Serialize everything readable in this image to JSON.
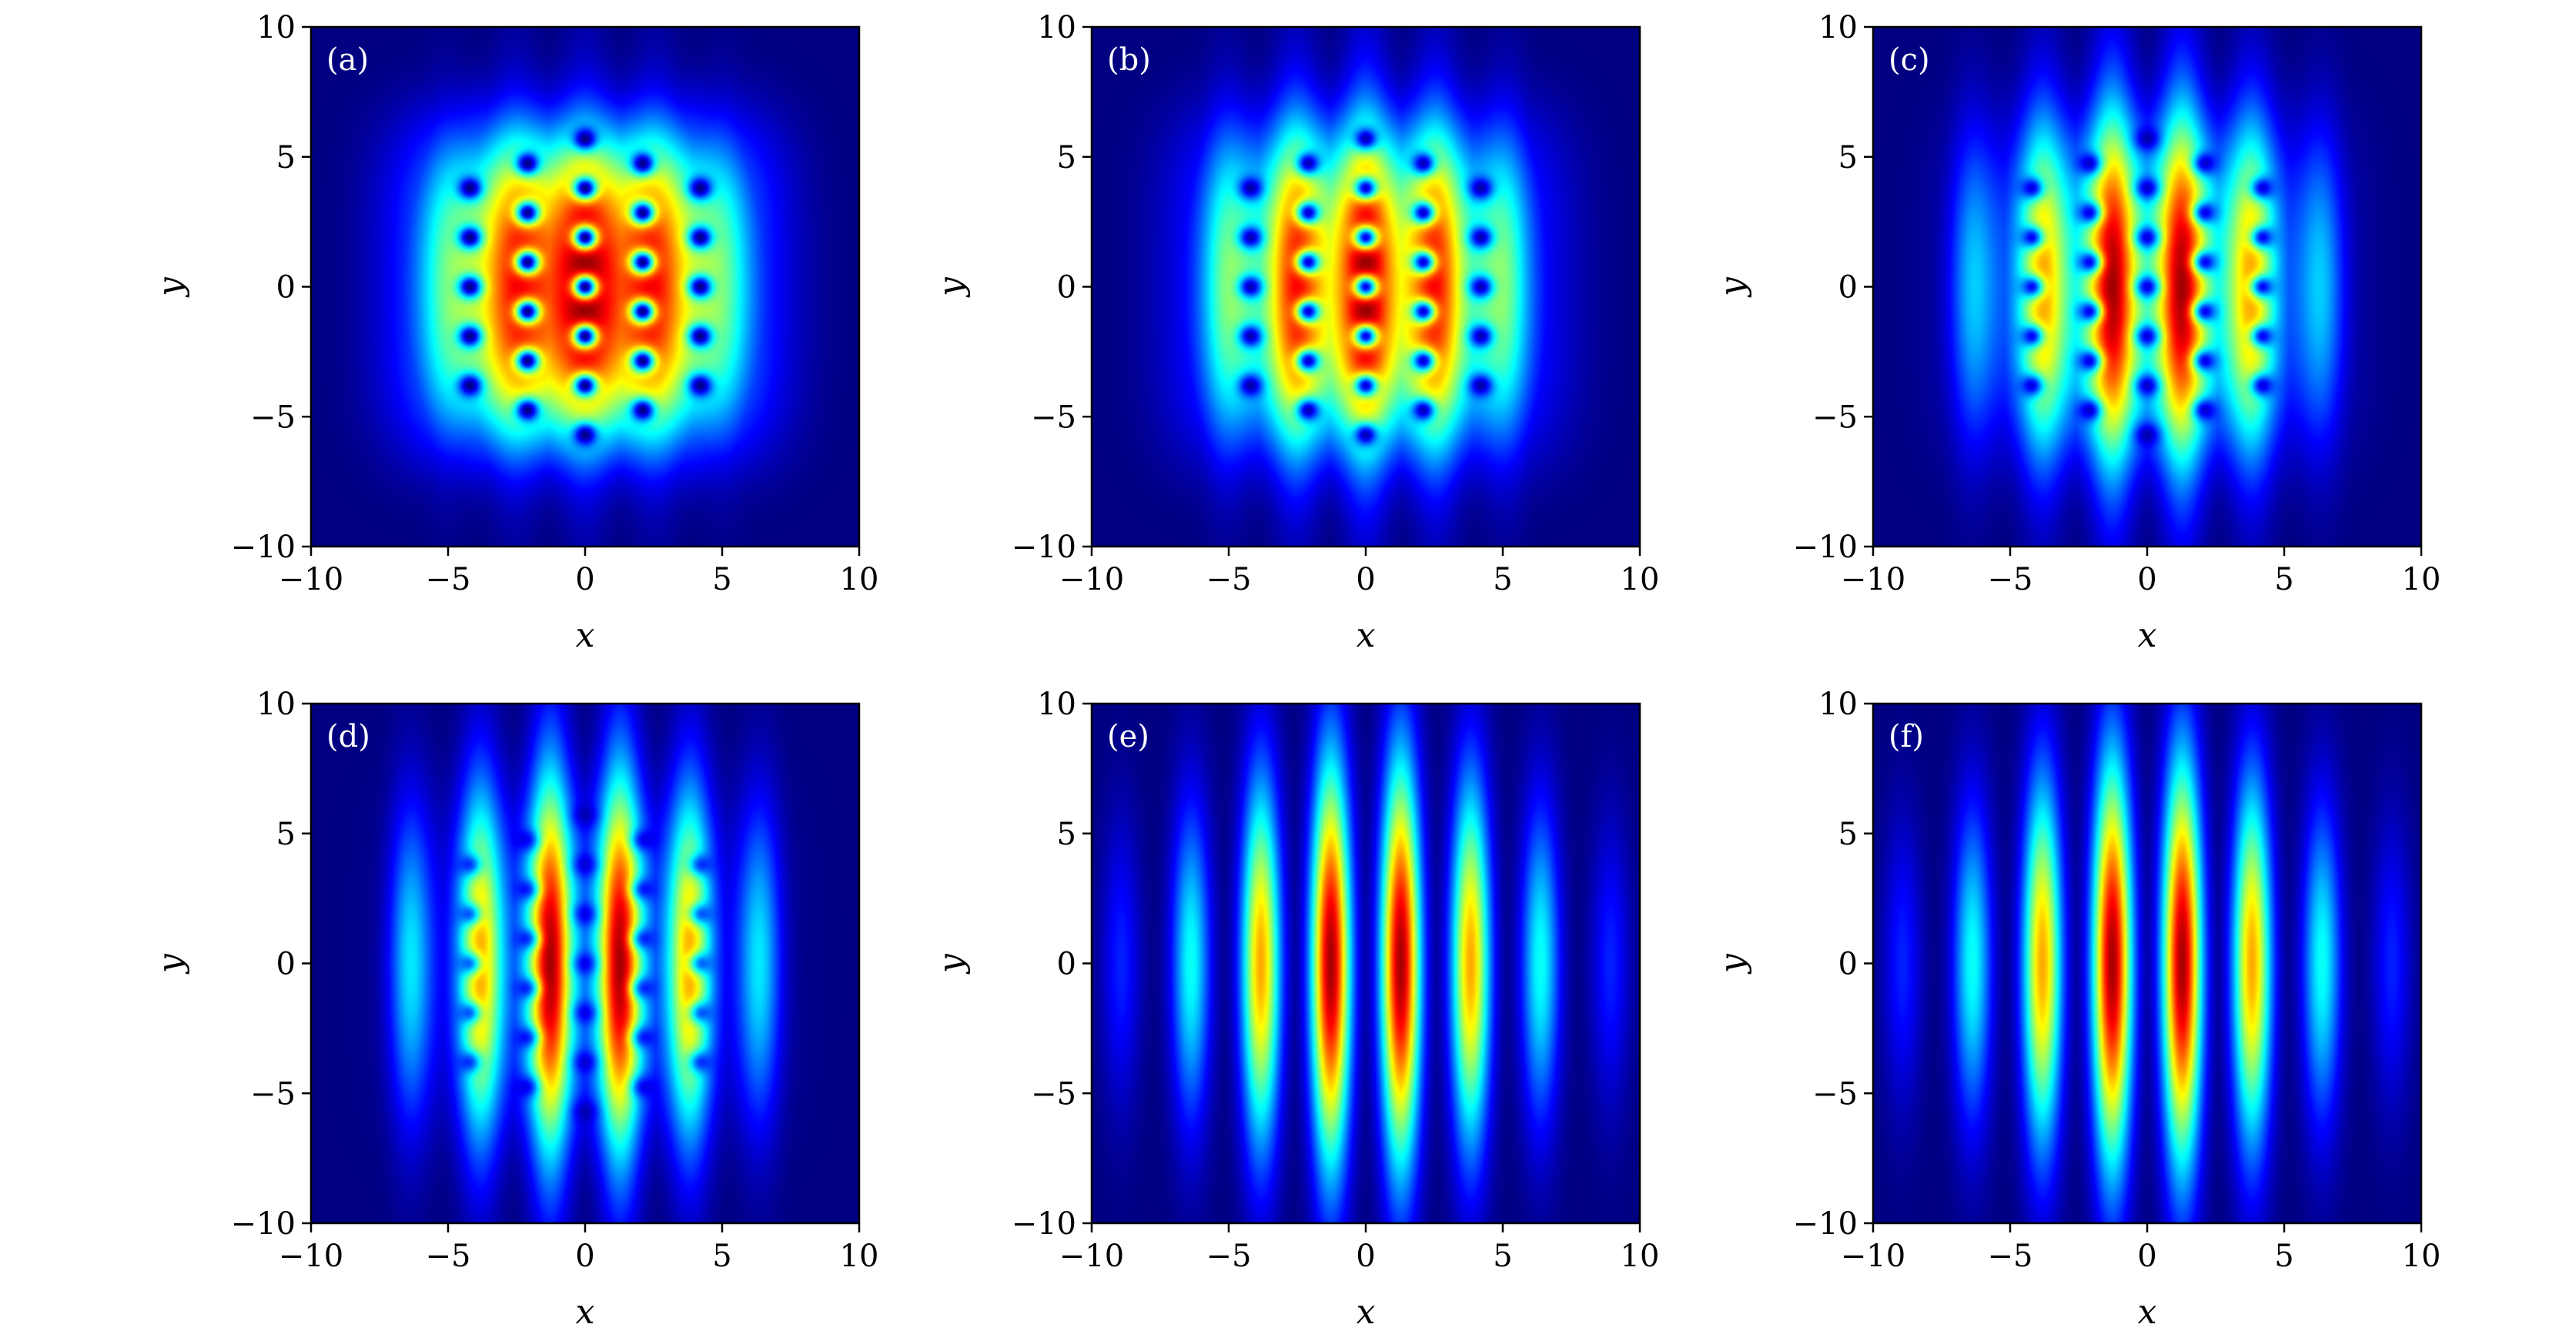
{
  "chart_data": [
    {
      "type": "heatmap",
      "panel_label": "(a)",
      "xlabel": "x",
      "ylabel": "y",
      "xlim": [
        -10,
        10
      ],
      "ylim": [
        -10,
        10
      ],
      "xticks": [
        -10,
        -5,
        0,
        5,
        10
      ],
      "yticks": [
        -10,
        -5,
        0,
        5,
        10
      ],
      "lobe_count": 5,
      "vortex_strength": 1.0,
      "lobe_contrast": 0.2
    },
    {
      "type": "heatmap",
      "panel_label": "(b)",
      "xlabel": "x",
      "ylabel": "y",
      "xlim": [
        -10,
        10
      ],
      "ylim": [
        -10,
        10
      ],
      "xticks": [
        -10,
        -5,
        0,
        5,
        10
      ],
      "yticks": [
        -10,
        -5,
        0,
        5,
        10
      ],
      "lobe_count": 5,
      "vortex_strength": 0.9,
      "lobe_contrast": 0.4
    },
    {
      "type": "heatmap",
      "panel_label": "(c)",
      "xlabel": "x",
      "ylabel": "y",
      "xlim": [
        -10,
        10
      ],
      "ylim": [
        -10,
        10
      ],
      "xticks": [
        -10,
        -5,
        0,
        5,
        10
      ],
      "yticks": [
        -10,
        -5,
        0,
        5,
        10
      ],
      "lobe_count": 6,
      "vortex_strength": 0.8,
      "lobe_contrast": 0.6
    },
    {
      "type": "heatmap",
      "panel_label": "(d)",
      "xlabel": "x",
      "ylabel": "y",
      "xlim": [
        -10,
        10
      ],
      "ylim": [
        -10,
        10
      ],
      "xticks": [
        -10,
        -5,
        0,
        5,
        10
      ],
      "yticks": [
        -10,
        -5,
        0,
        5,
        10
      ],
      "lobe_count": 6,
      "vortex_strength": 0.6,
      "lobe_contrast": 0.8
    },
    {
      "type": "heatmap",
      "panel_label": "(e)",
      "xlabel": "x",
      "ylabel": "y",
      "xlim": [
        -10,
        10
      ],
      "ylim": [
        -10,
        10
      ],
      "xticks": [
        -10,
        -5,
        0,
        5,
        10
      ],
      "yticks": [
        -10,
        -5,
        0,
        5,
        10
      ],
      "lobe_count": 8,
      "vortex_strength": 0.0,
      "lobe_contrast": 1.0
    },
    {
      "type": "heatmap",
      "panel_label": "(f)",
      "xlabel": "x",
      "ylabel": "y",
      "xlim": [
        -10,
        10
      ],
      "ylim": [
        -10,
        10
      ],
      "xticks": [
        -10,
        -5,
        0,
        5,
        10
      ],
      "yticks": [
        -10,
        -5,
        0,
        5,
        10
      ],
      "lobe_count": 8,
      "vortex_strength": 0.0,
      "lobe_contrast": 1.0
    }
  ],
  "tick_text": {
    "-10": "−10",
    "-5": "−5",
    "0": "0",
    "5": "5",
    "10": "10"
  },
  "colormap": "jet",
  "colors": {
    "background": "#00008f",
    "peak": "#800000"
  }
}
